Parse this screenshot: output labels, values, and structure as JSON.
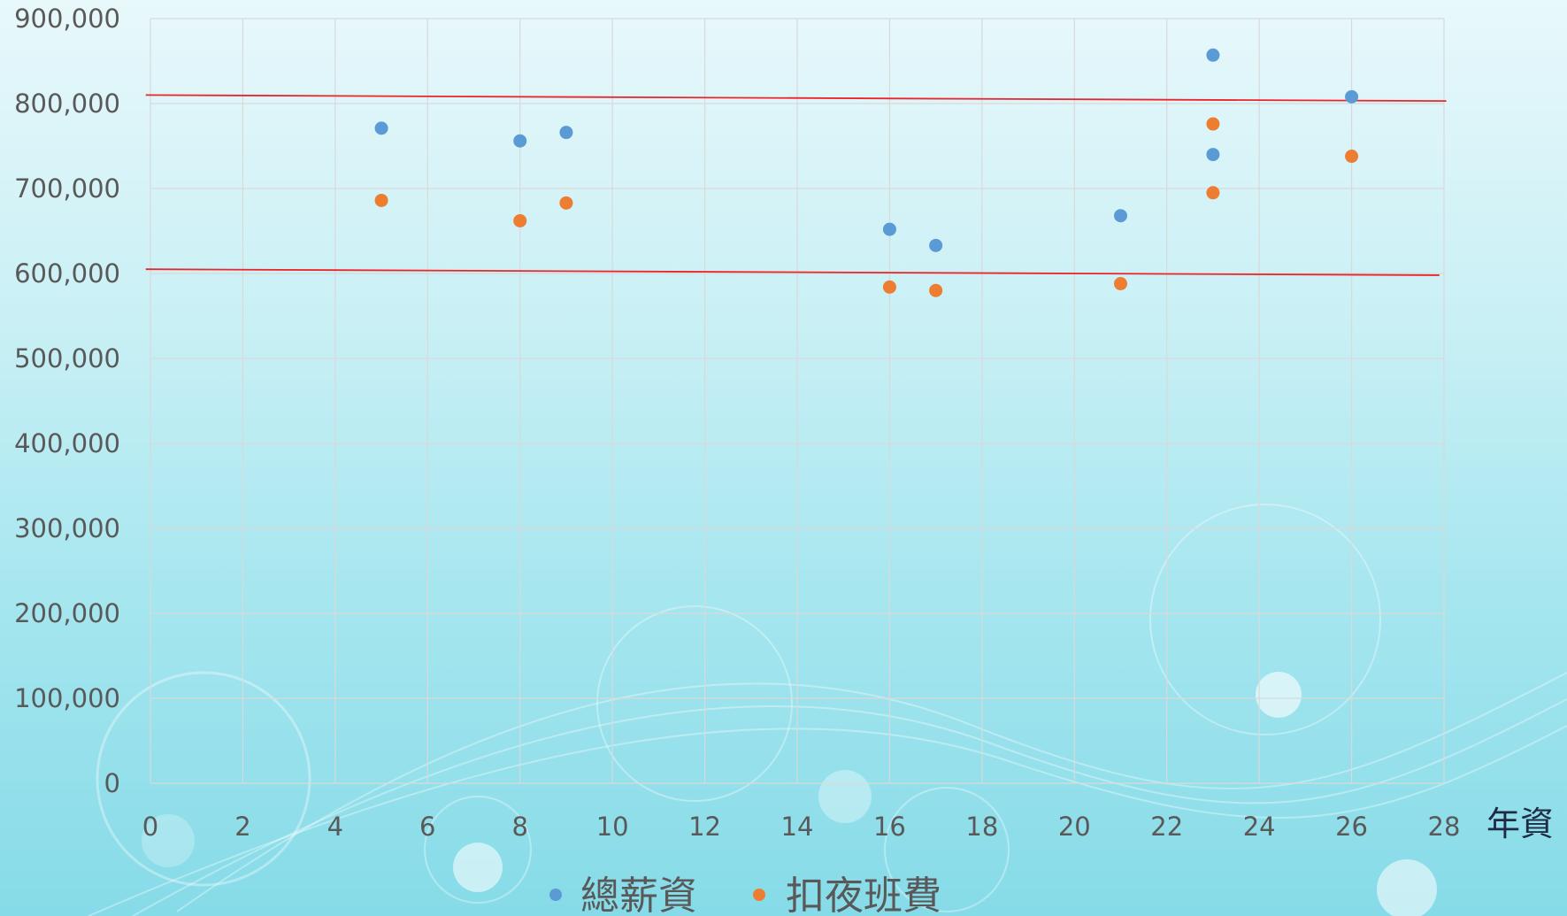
{
  "colors": {
    "series_1": "#5b9bd5",
    "series_2": "#ed7d31",
    "trend": "#e8262b"
  },
  "chart_data": {
    "type": "scatter",
    "xlabel": "年資",
    "ylabel": "",
    "xlim": [
      0,
      28
    ],
    "ylim": [
      0,
      900000
    ],
    "x_ticks": [
      "0",
      "2",
      "4",
      "6",
      "8",
      "10",
      "12",
      "14",
      "16",
      "18",
      "20",
      "22",
      "24",
      "26",
      "28"
    ],
    "y_ticks": [
      "0",
      "100,000",
      "200,000",
      "300,000",
      "400,000",
      "500,000",
      "600,000",
      "700,000",
      "800,000",
      "900,000"
    ],
    "grid": true,
    "legend_position": "bottom",
    "series": [
      {
        "name": "總薪資",
        "points": [
          {
            "x": 5,
            "y": 771000
          },
          {
            "x": 8,
            "y": 756000
          },
          {
            "x": 9,
            "y": 766000
          },
          {
            "x": 16,
            "y": 652000
          },
          {
            "x": 17,
            "y": 633000
          },
          {
            "x": 21,
            "y": 668000
          },
          {
            "x": 23,
            "y": 857000
          },
          {
            "x": 23,
            "y": 740000
          },
          {
            "x": 26,
            "y": 808000
          }
        ]
      },
      {
        "name": "扣夜班費",
        "points": [
          {
            "x": 5,
            "y": 686000
          },
          {
            "x": 8,
            "y": 662000
          },
          {
            "x": 9,
            "y": 683000
          },
          {
            "x": 16,
            "y": 584000
          },
          {
            "x": 17,
            "y": 580000
          },
          {
            "x": 21,
            "y": 588000
          },
          {
            "x": 23,
            "y": 776000
          },
          {
            "x": 23,
            "y": 695000
          },
          {
            "x": 26,
            "y": 738000
          }
        ]
      }
    ],
    "reference_lines": [
      {
        "x_start": -0.1,
        "y_start": 810000,
        "x_end": 28.05,
        "y_end": 803000
      },
      {
        "x_start": -0.1,
        "y_start": 605000,
        "x_end": 27.9,
        "y_end": 598000
      }
    ]
  }
}
